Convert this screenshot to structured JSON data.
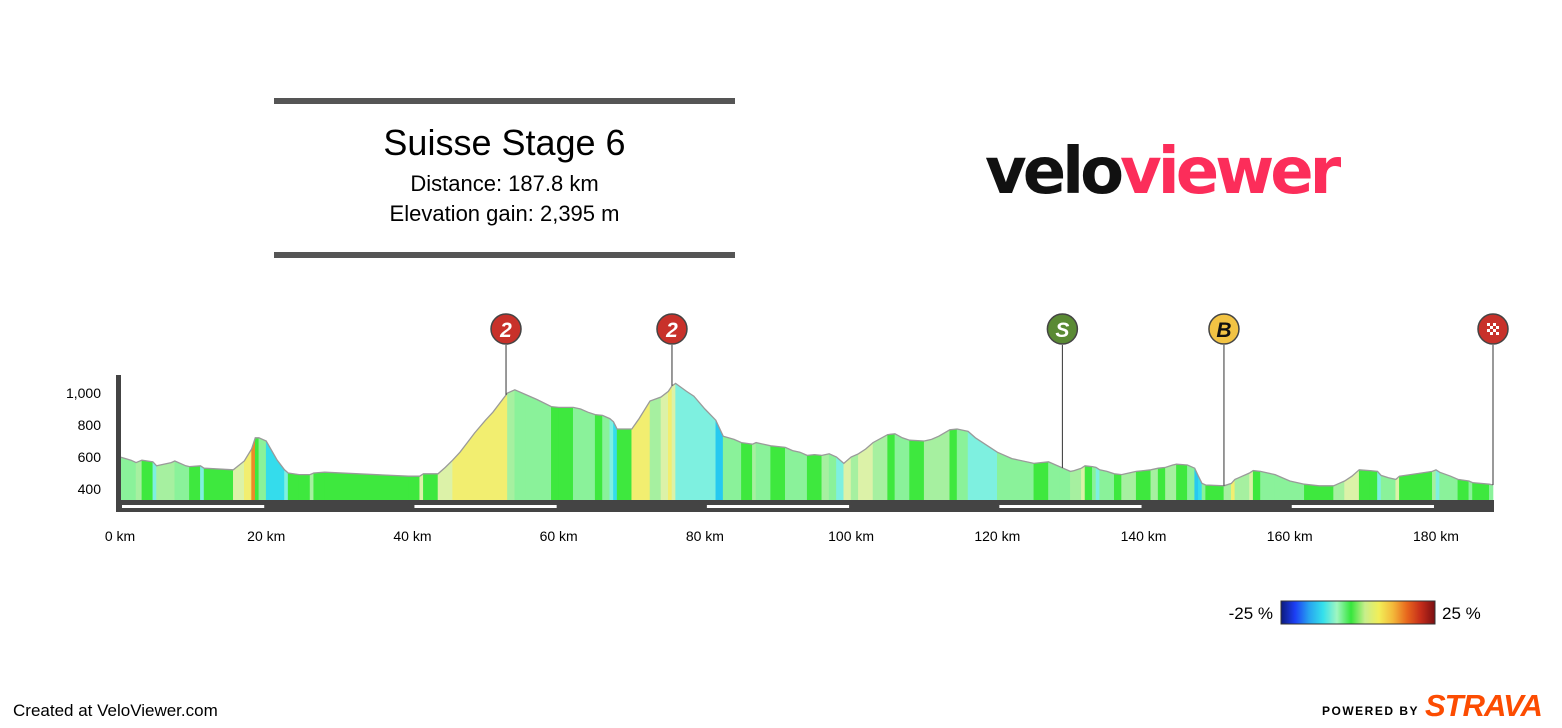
{
  "title": "Suisse Stage 6",
  "distance_text": "Distance: 187.8 km",
  "elevation_text": "Elevation gain: 2,395 m",
  "logo": {
    "part1": "velo",
    "part2": "viewer",
    "color1": "#111111",
    "color2": "#fc2d5a"
  },
  "footer": {
    "created": "Created at VeloViewer.com",
    "powered_by": "POWERED BY",
    "strava": "STRAVA",
    "strava_color": "#fc4c02"
  },
  "chart_data": {
    "type": "area",
    "x_unit": "km",
    "xlim": [
      0,
      187.8
    ],
    "ylim": [
      285,
      1000
    ],
    "x_ticks": [
      0,
      20,
      40,
      60,
      80,
      100,
      120,
      140,
      160,
      180
    ],
    "x_tick_labels": [
      "0 km",
      "20 km",
      "40 km",
      "60 km",
      "80 km",
      "100 km",
      "120 km",
      "140 km",
      "160 km",
      "180 km"
    ],
    "y_ticks": [
      400,
      600,
      800,
      1000
    ],
    "y_tick_labels": [
      "400",
      "600",
      "800",
      "1,000"
    ],
    "profile": [
      [
        0,
        600
      ],
      [
        1.5,
        580
      ],
      [
        2.2,
        565
      ],
      [
        3,
        580
      ],
      [
        4.5,
        570
      ],
      [
        5,
        545
      ],
      [
        7,
        565
      ],
      [
        7.5,
        575
      ],
      [
        9,
        545
      ],
      [
        9.5,
        540
      ],
      [
        11,
        545
      ],
      [
        11.5,
        530
      ],
      [
        15.5,
        520
      ],
      [
        17,
        575
      ],
      [
        18,
        650
      ],
      [
        18.5,
        720
      ],
      [
        19,
        720
      ],
      [
        20,
        700
      ],
      [
        21.5,
        580
      ],
      [
        22.5,
        520
      ],
      [
        23,
        500
      ],
      [
        24.5,
        490
      ],
      [
        26,
        490
      ],
      [
        26.5,
        500
      ],
      [
        28,
        505
      ],
      [
        39.5,
        480
      ],
      [
        41,
        480
      ],
      [
        41.5,
        495
      ],
      [
        43.5,
        495
      ],
      [
        44.5,
        535
      ],
      [
        45.5,
        580
      ],
      [
        46.5,
        630
      ],
      [
        47.5,
        690
      ],
      [
        48.5,
        750
      ],
      [
        50,
        830
      ],
      [
        51,
        880
      ],
      [
        53,
        1000
      ],
      [
        54,
        1020
      ],
      [
        55.5,
        990
      ],
      [
        57,
        960
      ],
      [
        59,
        915
      ],
      [
        60,
        910
      ],
      [
        62,
        910
      ],
      [
        63,
        900
      ],
      [
        64,
        880
      ],
      [
        65,
        865
      ],
      [
        66,
        860
      ],
      [
        67,
        840
      ],
      [
        67.5,
        820
      ],
      [
        68,
        775
      ],
      [
        70,
        775
      ],
      [
        71,
        840
      ],
      [
        72.5,
        950
      ],
      [
        74,
        975
      ],
      [
        75,
        1010
      ],
      [
        75.5,
        1045
      ],
      [
        76,
        1060
      ],
      [
        77.5,
        1010
      ],
      [
        78.5,
        980
      ],
      [
        80,
        900
      ],
      [
        81.5,
        830
      ],
      [
        82.5,
        730
      ],
      [
        84,
        710
      ],
      [
        85,
        690
      ],
      [
        86.5,
        680
      ],
      [
        87,
        690
      ],
      [
        89,
        670
      ],
      [
        91,
        660
      ],
      [
        92,
        640
      ],
      [
        93,
        630
      ],
      [
        94,
        610
      ],
      [
        95,
        615
      ],
      [
        96,
        610
      ],
      [
        97,
        620
      ],
      [
        98,
        600
      ],
      [
        99,
        560
      ],
      [
        100,
        600
      ],
      [
        101,
        620
      ],
      [
        102,
        650
      ],
      [
        103,
        690
      ],
      [
        105,
        740
      ],
      [
        106,
        745
      ],
      [
        107,
        720
      ],
      [
        108,
        705
      ],
      [
        110,
        700
      ],
      [
        111,
        710
      ],
      [
        112,
        730
      ],
      [
        113.5,
        770
      ],
      [
        114.5,
        775
      ],
      [
        116,
        760
      ],
      [
        117,
        720
      ],
      [
        120,
        630
      ],
      [
        122,
        590
      ],
      [
        125,
        560
      ],
      [
        127,
        570
      ],
      [
        127.5,
        560
      ],
      [
        128.5,
        540
      ],
      [
        129,
        530
      ],
      [
        130,
        510
      ],
      [
        130.5,
        515
      ],
      [
        131.5,
        530
      ],
      [
        132,
        545
      ],
      [
        133,
        540
      ],
      [
        133.5,
        535
      ],
      [
        134,
        520
      ],
      [
        135,
        510
      ],
      [
        136,
        495
      ],
      [
        137,
        490
      ],
      [
        138,
        500
      ],
      [
        139,
        510
      ],
      [
        140,
        515
      ],
      [
        141,
        520
      ],
      [
        142,
        530
      ],
      [
        143,
        535
      ],
      [
        144,
        550
      ],
      [
        144.5,
        555
      ],
      [
        146,
        550
      ],
      [
        147,
        530
      ],
      [
        147.5,
        480
      ],
      [
        148,
        435
      ],
      [
        148.5,
        425
      ],
      [
        151,
        420
      ],
      [
        152,
        435
      ],
      [
        152.5,
        460
      ],
      [
        153,
        470
      ],
      [
        153.5,
        480
      ],
      [
        154.5,
        500
      ],
      [
        155,
        515
      ],
      [
        156,
        510
      ],
      [
        157,
        500
      ],
      [
        158,
        490
      ],
      [
        160,
        450
      ],
      [
        162,
        430
      ],
      [
        164,
        420
      ],
      [
        166,
        420
      ],
      [
        166.5,
        430
      ],
      [
        167.5,
        450
      ],
      [
        168.5,
        480
      ],
      [
        169.5,
        520
      ],
      [
        171,
        515
      ],
      [
        172,
        510
      ],
      [
        172.5,
        485
      ],
      [
        173.5,
        470
      ],
      [
        174.5,
        460
      ],
      [
        175,
        480
      ],
      [
        176.5,
        490
      ],
      [
        178,
        500
      ],
      [
        179.5,
        510
      ],
      [
        180,
        520
      ],
      [
        180.5,
        505
      ],
      [
        182,
        480
      ],
      [
        183,
        460
      ],
      [
        184.5,
        450
      ],
      [
        185,
        440
      ],
      [
        187.3,
        430
      ],
      [
        187.8,
        425
      ]
    ],
    "markers": [
      {
        "km": 52.8,
        "label": "2",
        "type": "climb",
        "color": "#c8312a"
      },
      {
        "km": 75.5,
        "label": "2",
        "type": "climb",
        "color": "#c8312a"
      },
      {
        "km": 128.9,
        "label": "S",
        "type": "sprint",
        "color": "#5a8a34"
      },
      {
        "km": 151,
        "label": "B",
        "type": "bonus",
        "color": "#f2c344"
      },
      {
        "km": 187.8,
        "label": "",
        "type": "finish",
        "color": "#c8312a"
      }
    ],
    "legend": {
      "min_label": "-25 %",
      "max_label": "25 %",
      "min": -25,
      "max": 25,
      "colors": [
        "#0c1a7a",
        "#1c3ef5",
        "#27a3f0",
        "#34e0ec",
        "#a0f6c0",
        "#35e63c",
        "#c8ee8c",
        "#f2ee58",
        "#f3b83a",
        "#e8671d",
        "#c42c1a",
        "#7a0f12"
      ]
    }
  }
}
